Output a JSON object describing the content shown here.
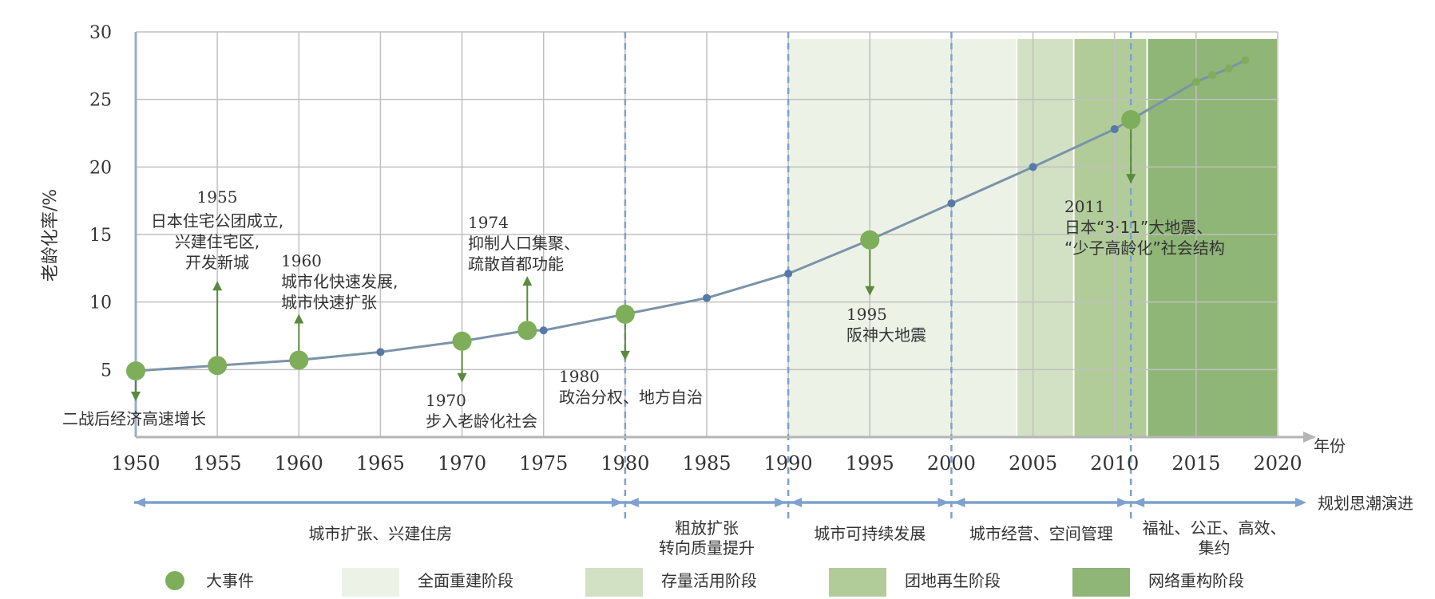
{
  "chart_data": {
    "type": "line",
    "ylabel": "老龄化率/%",
    "xlabel": "年份",
    "xlim": [
      1950,
      2020
    ],
    "ylim": [
      0,
      30
    ],
    "x_ticks": [
      "1950",
      "1955",
      "1960",
      "1965",
      "1970",
      "1975",
      "1980",
      "1985",
      "1990",
      "1995",
      "2000",
      "2005",
      "2010",
      "2015",
      "2020"
    ],
    "y_ticks": [
      "5",
      "10",
      "15",
      "20",
      "25",
      "30"
    ],
    "series": [
      {
        "x": [
          1950,
          1955,
          1960,
          1965,
          1970,
          1974,
          1975,
          1980,
          1985,
          1990,
          1995,
          2000,
          2005,
          2010,
          2011,
          2015,
          2016,
          2017,
          2018
        ],
        "values": [
          4.9,
          5.3,
          5.7,
          6.3,
          7.1,
          7.9,
          7.9,
          9.1,
          10.3,
          12.1,
          14.6,
          17.3,
          20.0,
          22.8,
          23.5,
          26.3,
          26.8,
          27.3,
          27.9
        ]
      }
    ],
    "events": [
      {
        "x": 1950,
        "y": 4.9,
        "dir": "down",
        "year": "",
        "lines": [
          "二战后经济高速增长"
        ]
      },
      {
        "x": 1955,
        "y": 5.3,
        "dir": "up",
        "year": "1955",
        "lines": [
          "日本住宅公团成立,",
          "兴建住宅区,",
          "开发新城"
        ]
      },
      {
        "x": 1960,
        "y": 5.7,
        "dir": "up",
        "year": "1960",
        "lines": [
          "城市化快速发展,",
          "城市快速扩张"
        ]
      },
      {
        "x": 1970,
        "y": 7.1,
        "dir": "down",
        "year": "1970",
        "lines": [
          "步入老龄化社会"
        ]
      },
      {
        "x": 1974,
        "y": 7.9,
        "dir": "up",
        "year": "1974",
        "lines": [
          "抑制人口集聚、",
          "疏散首都功能"
        ]
      },
      {
        "x": 1980,
        "y": 9.1,
        "dir": "down",
        "year": "1980",
        "lines": [
          "政治分权、地方自治"
        ]
      },
      {
        "x": 1995,
        "y": 14.6,
        "dir": "down",
        "year": "1995",
        "lines": [
          "阪神大地震"
        ]
      },
      {
        "x": 2011,
        "y": 23.5,
        "dir": "down",
        "year": "2011",
        "lines": [
          "日本“3·11”大地震、",
          "“少子高龄化”社会结构"
        ]
      }
    ],
    "stage_bands": [
      {
        "from": 1990,
        "to": 2004,
        "stage": 0
      },
      {
        "from": 2004,
        "to": 2007.5,
        "stage": 1
      },
      {
        "from": 2007.5,
        "to": 2012,
        "stage": 2
      },
      {
        "from": 2012,
        "to": 2020,
        "stage": 3
      }
    ],
    "stage_colors": [
      "#edf2e7",
      "#d2e0c4",
      "#b1cc99",
      "#8fb577"
    ],
    "dividers": [
      1980,
      1990,
      2000,
      2011
    ],
    "planning_label": "规划思潮演进",
    "planning_periods": [
      {
        "from": 1950,
        "to": 1980,
        "lines": [
          "城市扩张、兴建住房"
        ]
      },
      {
        "from": 1980,
        "to": 1990,
        "lines": [
          "粗放扩张",
          "转向质量提升"
        ]
      },
      {
        "from": 1990,
        "to": 2000,
        "lines": [
          "城市可持续发展"
        ]
      },
      {
        "from": 2000,
        "to": 2011,
        "lines": [
          "城市经营、空间管理"
        ]
      },
      {
        "from": 2011,
        "to": 2020,
        "lines": [
          "福祉、公正、高效、",
          "集约"
        ]
      }
    ],
    "legend": [
      {
        "label": "大事件"
      },
      {
        "label": "全面重建阶段"
      },
      {
        "label": "存量活用阶段"
      },
      {
        "label": "团地再生阶段"
      },
      {
        "label": "网络重构阶段"
      }
    ],
    "colors": {
      "line": "#7b93a8",
      "point": "#5779a8",
      "event": "#7eae5a",
      "arrow": "#5b8a3c",
      "axis": "#9aaec8",
      "planning": "#7da1d0",
      "grid": "#c0c0c0"
    }
  }
}
